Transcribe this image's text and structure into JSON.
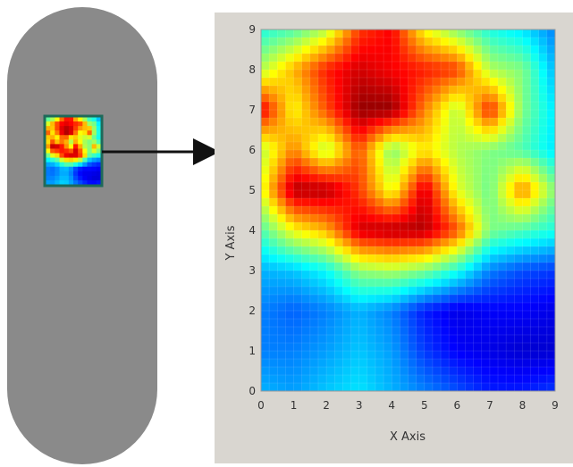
{
  "colors": {
    "sample_body": "#8a8a8a",
    "panel_background": "#d9d6d0",
    "inset_border": "#1e6a5a",
    "arrow": "#111111"
  },
  "chart_data": {
    "type": "heatmap",
    "title": "",
    "xlabel": "X Axis",
    "ylabel": "Y Axis",
    "xlim": [
      0,
      9
    ],
    "ylim": [
      0,
      9
    ],
    "x_ticks": [
      "0",
      "1",
      "2",
      "3",
      "4",
      "5",
      "6",
      "7",
      "8",
      "9"
    ],
    "y_ticks": [
      "0",
      "1",
      "2",
      "3",
      "4",
      "5",
      "6",
      "7",
      "8",
      "9"
    ],
    "colormap": "jet",
    "value_range": [
      0,
      1
    ],
    "grid_x": [
      0,
      1,
      2,
      3,
      4,
      5,
      6,
      7,
      8,
      9
    ],
    "grid_y": [
      9,
      8,
      7,
      6,
      5,
      4,
      3,
      2,
      1,
      0
    ],
    "values": [
      [
        0.4,
        0.45,
        0.55,
        0.82,
        0.88,
        0.62,
        0.5,
        0.4,
        0.35,
        0.25
      ],
      [
        0.55,
        0.7,
        0.85,
        0.92,
        0.88,
        0.85,
        0.82,
        0.55,
        0.5,
        0.3
      ],
      [
        0.9,
        0.62,
        0.8,
        0.98,
        0.98,
        0.75,
        0.55,
        0.85,
        0.5,
        0.35
      ],
      [
        0.55,
        0.75,
        0.55,
        0.8,
        0.5,
        0.65,
        0.55,
        0.5,
        0.45,
        0.35
      ],
      [
        0.6,
        0.95,
        0.95,
        0.82,
        0.6,
        0.92,
        0.6,
        0.48,
        0.75,
        0.5
      ],
      [
        0.45,
        0.62,
        0.7,
        0.92,
        0.95,
        0.95,
        0.8,
        0.5,
        0.45,
        0.4
      ],
      [
        0.3,
        0.32,
        0.38,
        0.52,
        0.55,
        0.5,
        0.4,
        0.25,
        0.2,
        0.18
      ],
      [
        0.25,
        0.22,
        0.25,
        0.3,
        0.25,
        0.15,
        0.1,
        0.12,
        0.12,
        0.1
      ],
      [
        0.25,
        0.25,
        0.28,
        0.32,
        0.28,
        0.18,
        0.12,
        0.1,
        0.08,
        0.08
      ],
      [
        0.3,
        0.28,
        0.32,
        0.35,
        0.3,
        0.25,
        0.2,
        0.15,
        0.15,
        0.18
      ]
    ]
  }
}
